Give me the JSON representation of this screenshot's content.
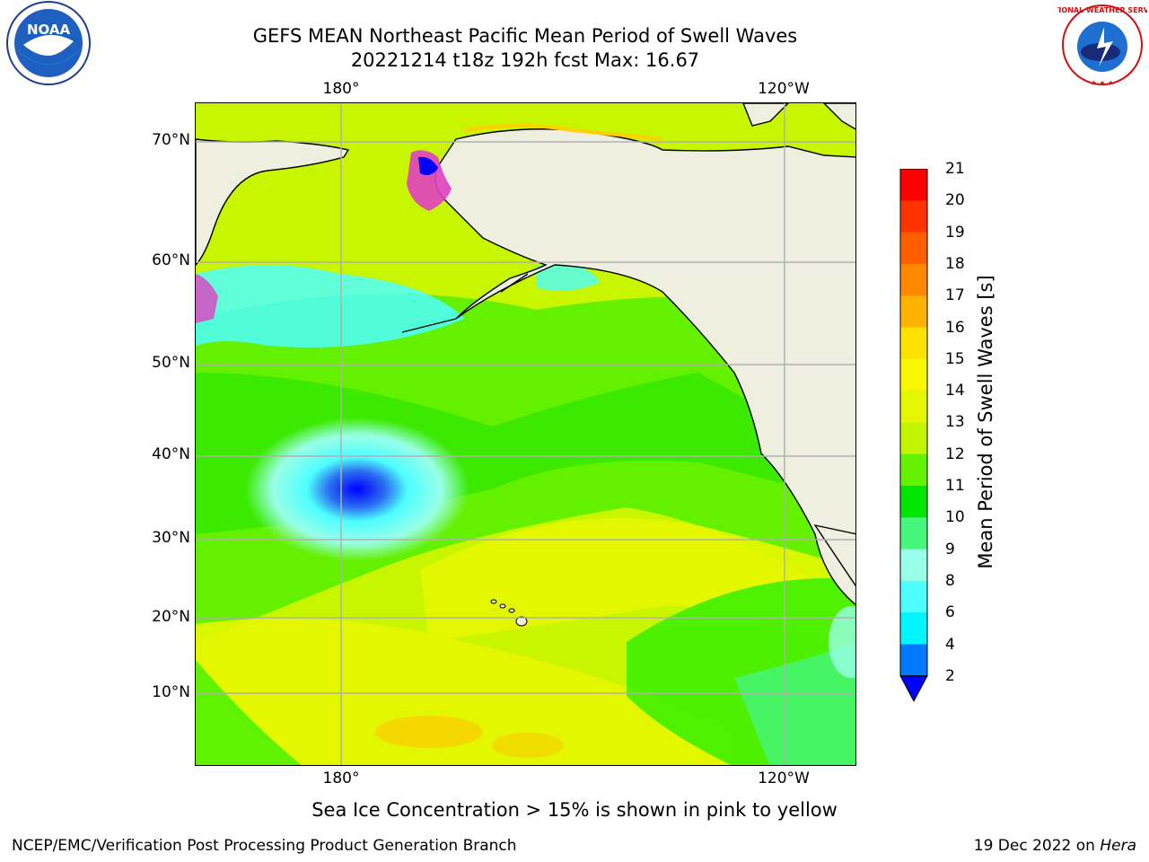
{
  "title": {
    "line1": "GEFS MEAN Northeast Pacific Mean Period of Swell Waves",
    "line2": "20221214 t18z 192h fcst   Max: 16.67"
  },
  "map": {
    "lon_labels_top": [
      "180°",
      "120°W"
    ],
    "lon_labels_bottom": [
      "180°",
      "120°W"
    ],
    "lat_labels": [
      "70°N",
      "60°N",
      "50°N",
      "40°N",
      "30°N",
      "20°N",
      "10°N"
    ],
    "colors": {
      "land": "#efefe0",
      "coast": "#000000",
      "grid": "#b0b0b0"
    }
  },
  "colorbar": {
    "label": "Mean Period of Swell Waves [s]",
    "ticks": [
      "21",
      "20",
      "19",
      "18",
      "17",
      "16",
      "15",
      "14",
      "13",
      "12",
      "11",
      "10",
      "9",
      "8",
      "6",
      "4",
      "2"
    ],
    "colors": [
      "#ff0000",
      "#ff3300",
      "#ff5e00",
      "#ff8800",
      "#ffb300",
      "#ffe100",
      "#f7f700",
      "#e5f700",
      "#c4f500",
      "#64f200",
      "#00e600",
      "#46f57c",
      "#9affe7",
      "#4dffff",
      "#00f5ff",
      "#0078ff",
      "#0000ff"
    ]
  },
  "footer": {
    "note": "Sea Ice Concentration > 15% is shown in pink to yellow",
    "credit": "NCEP/EMC/Verification Post Processing Product Generation Branch",
    "date": "19 Dec 2022 on",
    "host": "Hera"
  },
  "logos": {
    "noaa_text": "NOAA",
    "nws_text": "NATIONAL WEATHER SERVICE"
  }
}
